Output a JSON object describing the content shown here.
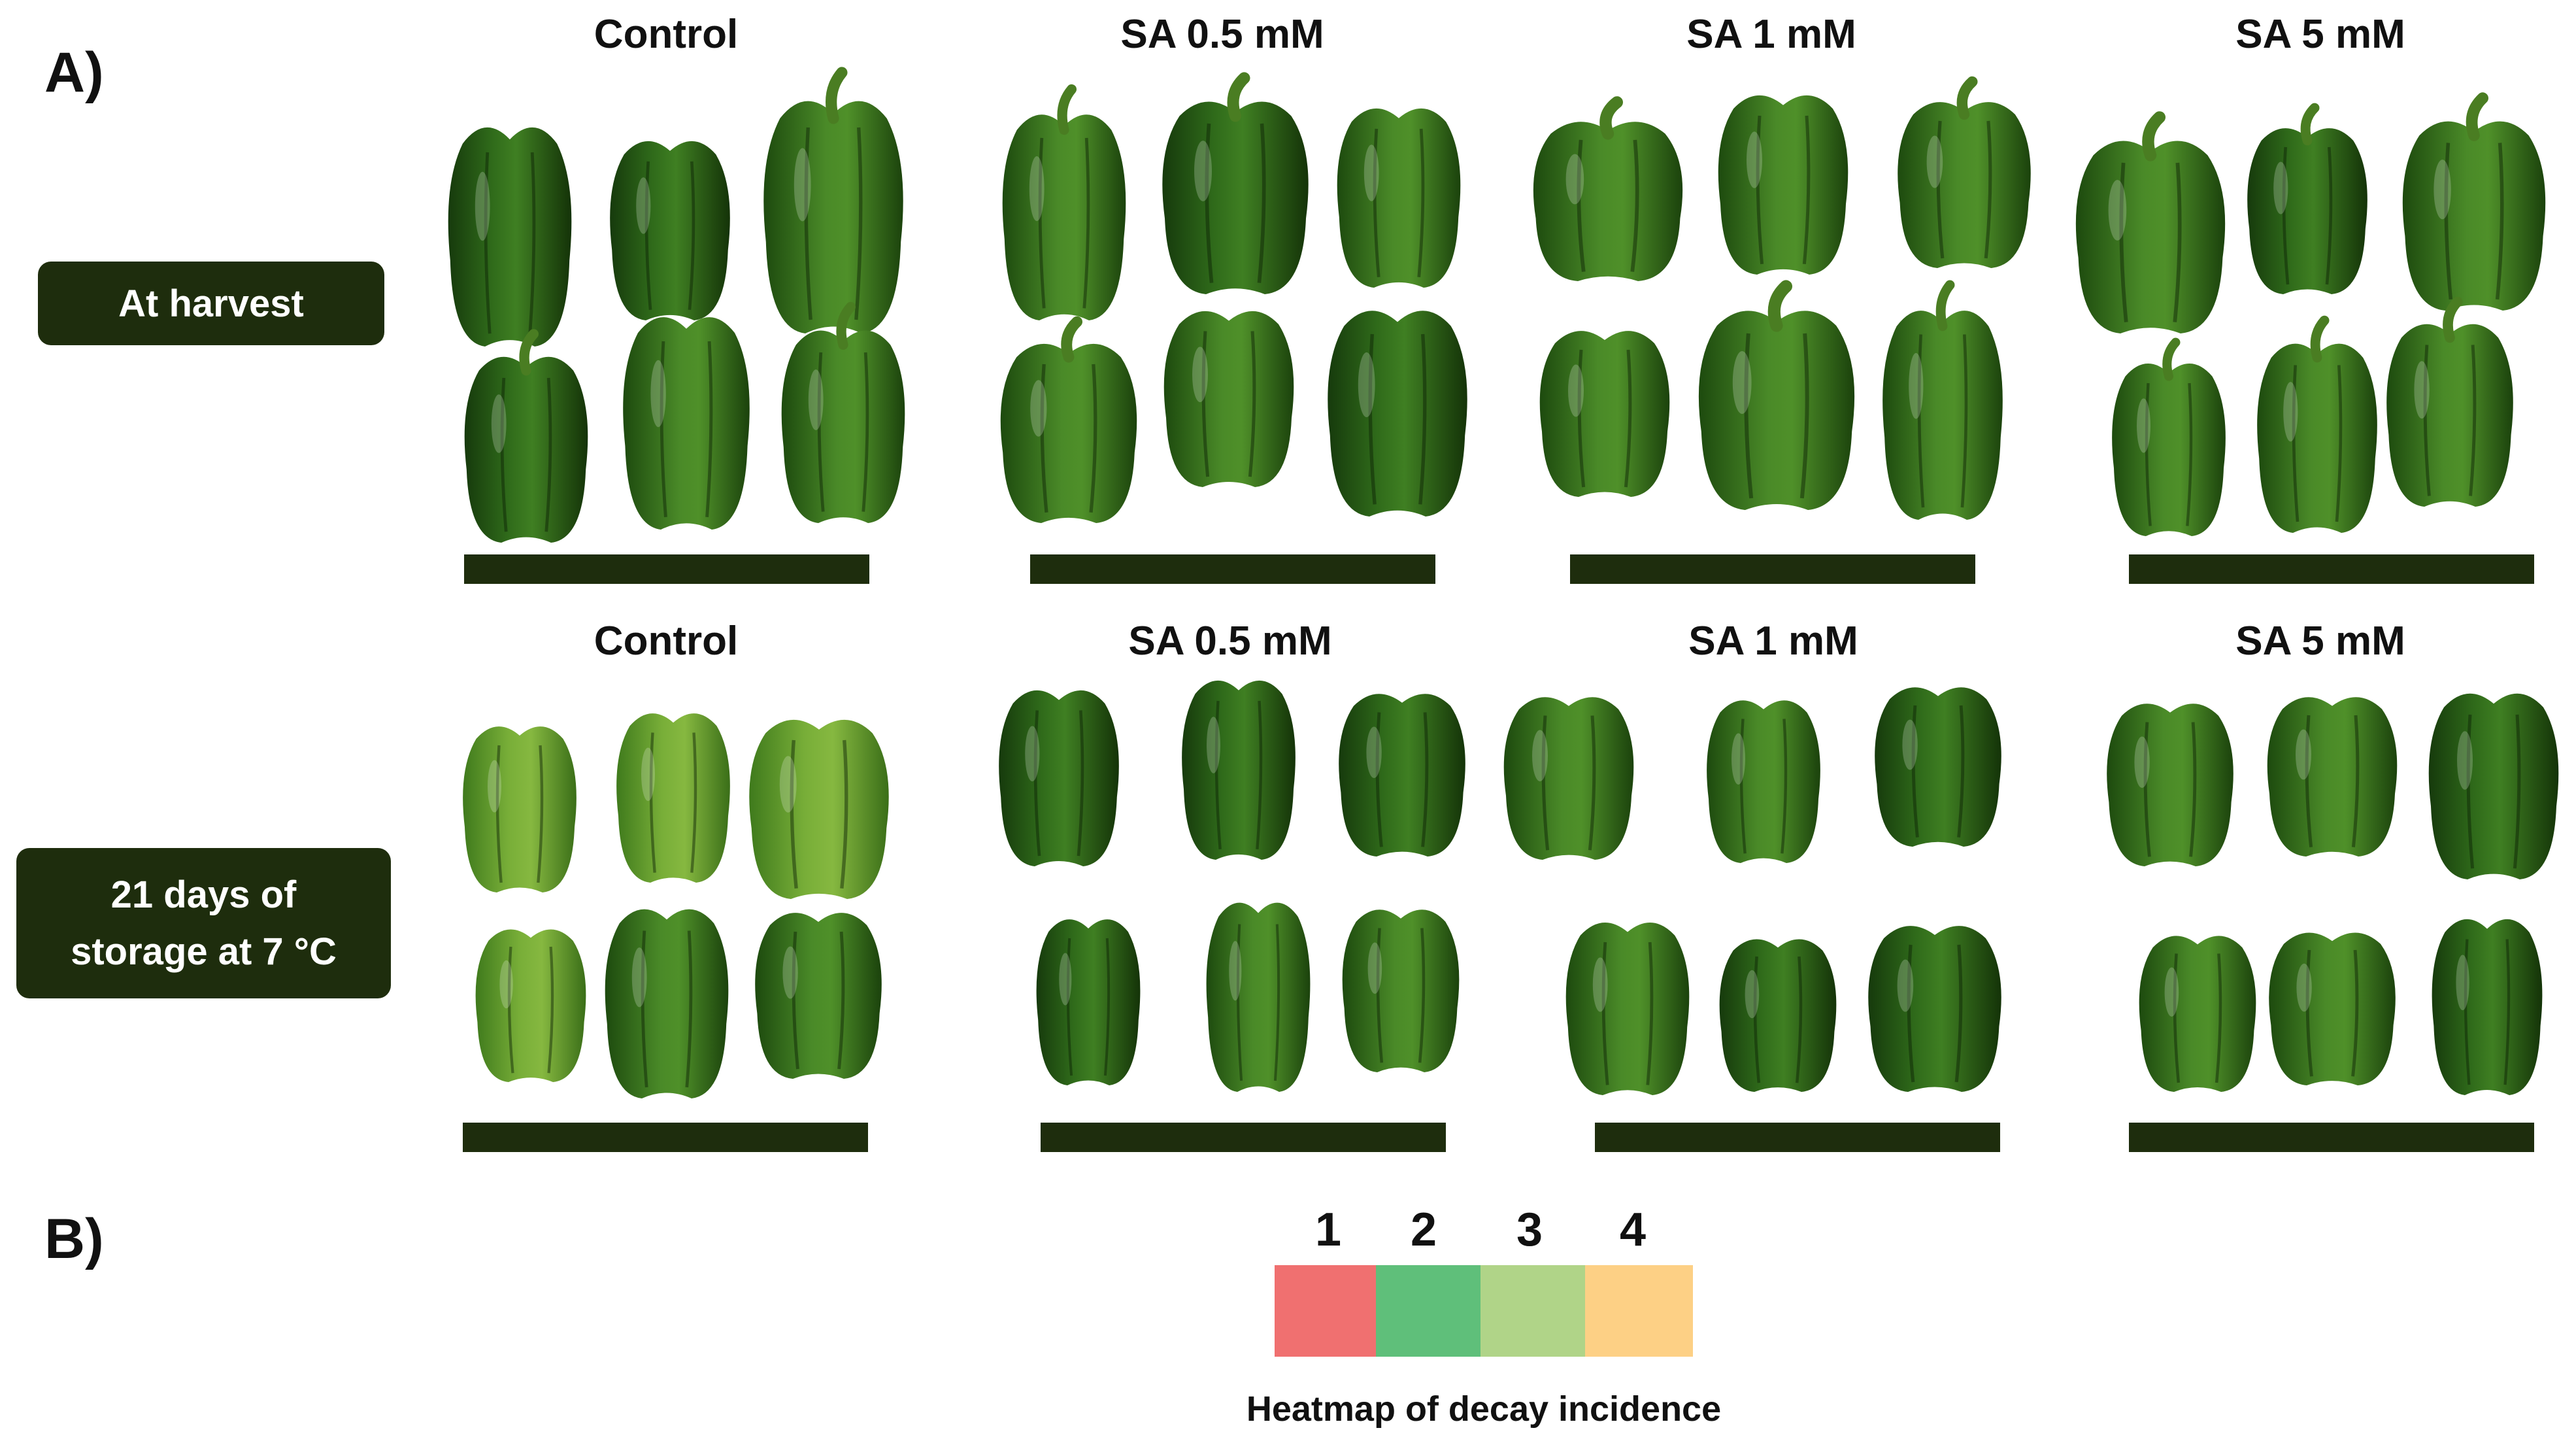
{
  "panels": {
    "a_label": "A)",
    "b_label": "B)"
  },
  "rows": [
    {
      "label_lines": [
        "At harvest"
      ],
      "columns": [
        "Control",
        "SA 0.5 mM",
        "SA 1 mM",
        "SA 5 mM"
      ]
    },
    {
      "label_lines": [
        "21 days of",
        "storage at 7 °C"
      ],
      "columns": [
        "Control",
        "SA 0.5 mM",
        "SA 1 mM",
        "SA 5 mM"
      ]
    }
  ],
  "heatmap": {
    "caption": "Heatmap of decay incidence",
    "levels": [
      {
        "label": "1",
        "color": "#f07070"
      },
      {
        "label": "2",
        "color": "#5fbf7a"
      },
      {
        "label": "3",
        "color": "#b0d488"
      },
      {
        "label": "4",
        "color": "#fdd085"
      }
    ]
  },
  "colors": {
    "label_box": "#1e2d0d",
    "bar": "#1e2d0d",
    "pepper_dark": "#1f4a12",
    "pepper_mid": "#2f6a1a",
    "pepper_light": "#5c9a2c",
    "pepper_stored_light": "#7fb43a"
  }
}
